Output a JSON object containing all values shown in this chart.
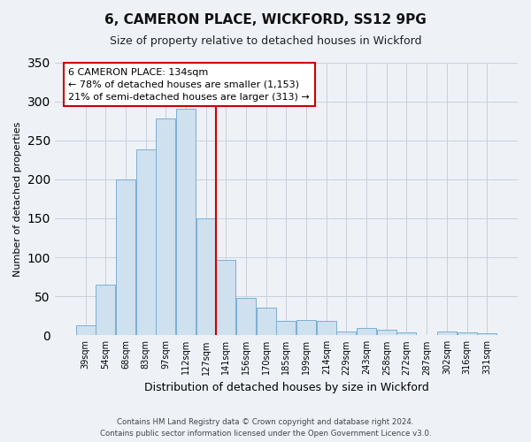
{
  "title": "6, CAMERON PLACE, WICKFORD, SS12 9PG",
  "subtitle": "Size of property relative to detached houses in Wickford",
  "xlabel": "Distribution of detached houses by size in Wickford",
  "ylabel": "Number of detached properties",
  "bar_color": "#cfe0ef",
  "bar_edge_color": "#7bafd4",
  "background_color": "#eef2f7",
  "categories": [
    "39sqm",
    "54sqm",
    "68sqm",
    "83sqm",
    "97sqm",
    "112sqm",
    "127sqm",
    "141sqm",
    "156sqm",
    "170sqm",
    "185sqm",
    "199sqm",
    "214sqm",
    "229sqm",
    "243sqm",
    "258sqm",
    "272sqm",
    "287sqm",
    "302sqm",
    "316sqm",
    "331sqm"
  ],
  "values": [
    13,
    65,
    200,
    238,
    278,
    290,
    150,
    97,
    48,
    35,
    19,
    20,
    19,
    5,
    9,
    7,
    4,
    0,
    5,
    4,
    3
  ],
  "ylim": [
    0,
    350
  ],
  "yticks": [
    0,
    50,
    100,
    150,
    200,
    250,
    300,
    350
  ],
  "vline_index": 7,
  "vline_color": "#cc0000",
  "annotation_title": "6 CAMERON PLACE: 134sqm",
  "annotation_line1": "← 78% of detached houses are smaller (1,153)",
  "annotation_line2": "21% of semi-detached houses are larger (313) →",
  "annotation_box_facecolor": "#ffffff",
  "annotation_box_edgecolor": "#cc0000",
  "footer1": "Contains HM Land Registry data © Crown copyright and database right 2024.",
  "footer2": "Contains public sector information licensed under the Open Government Licence v3.0."
}
